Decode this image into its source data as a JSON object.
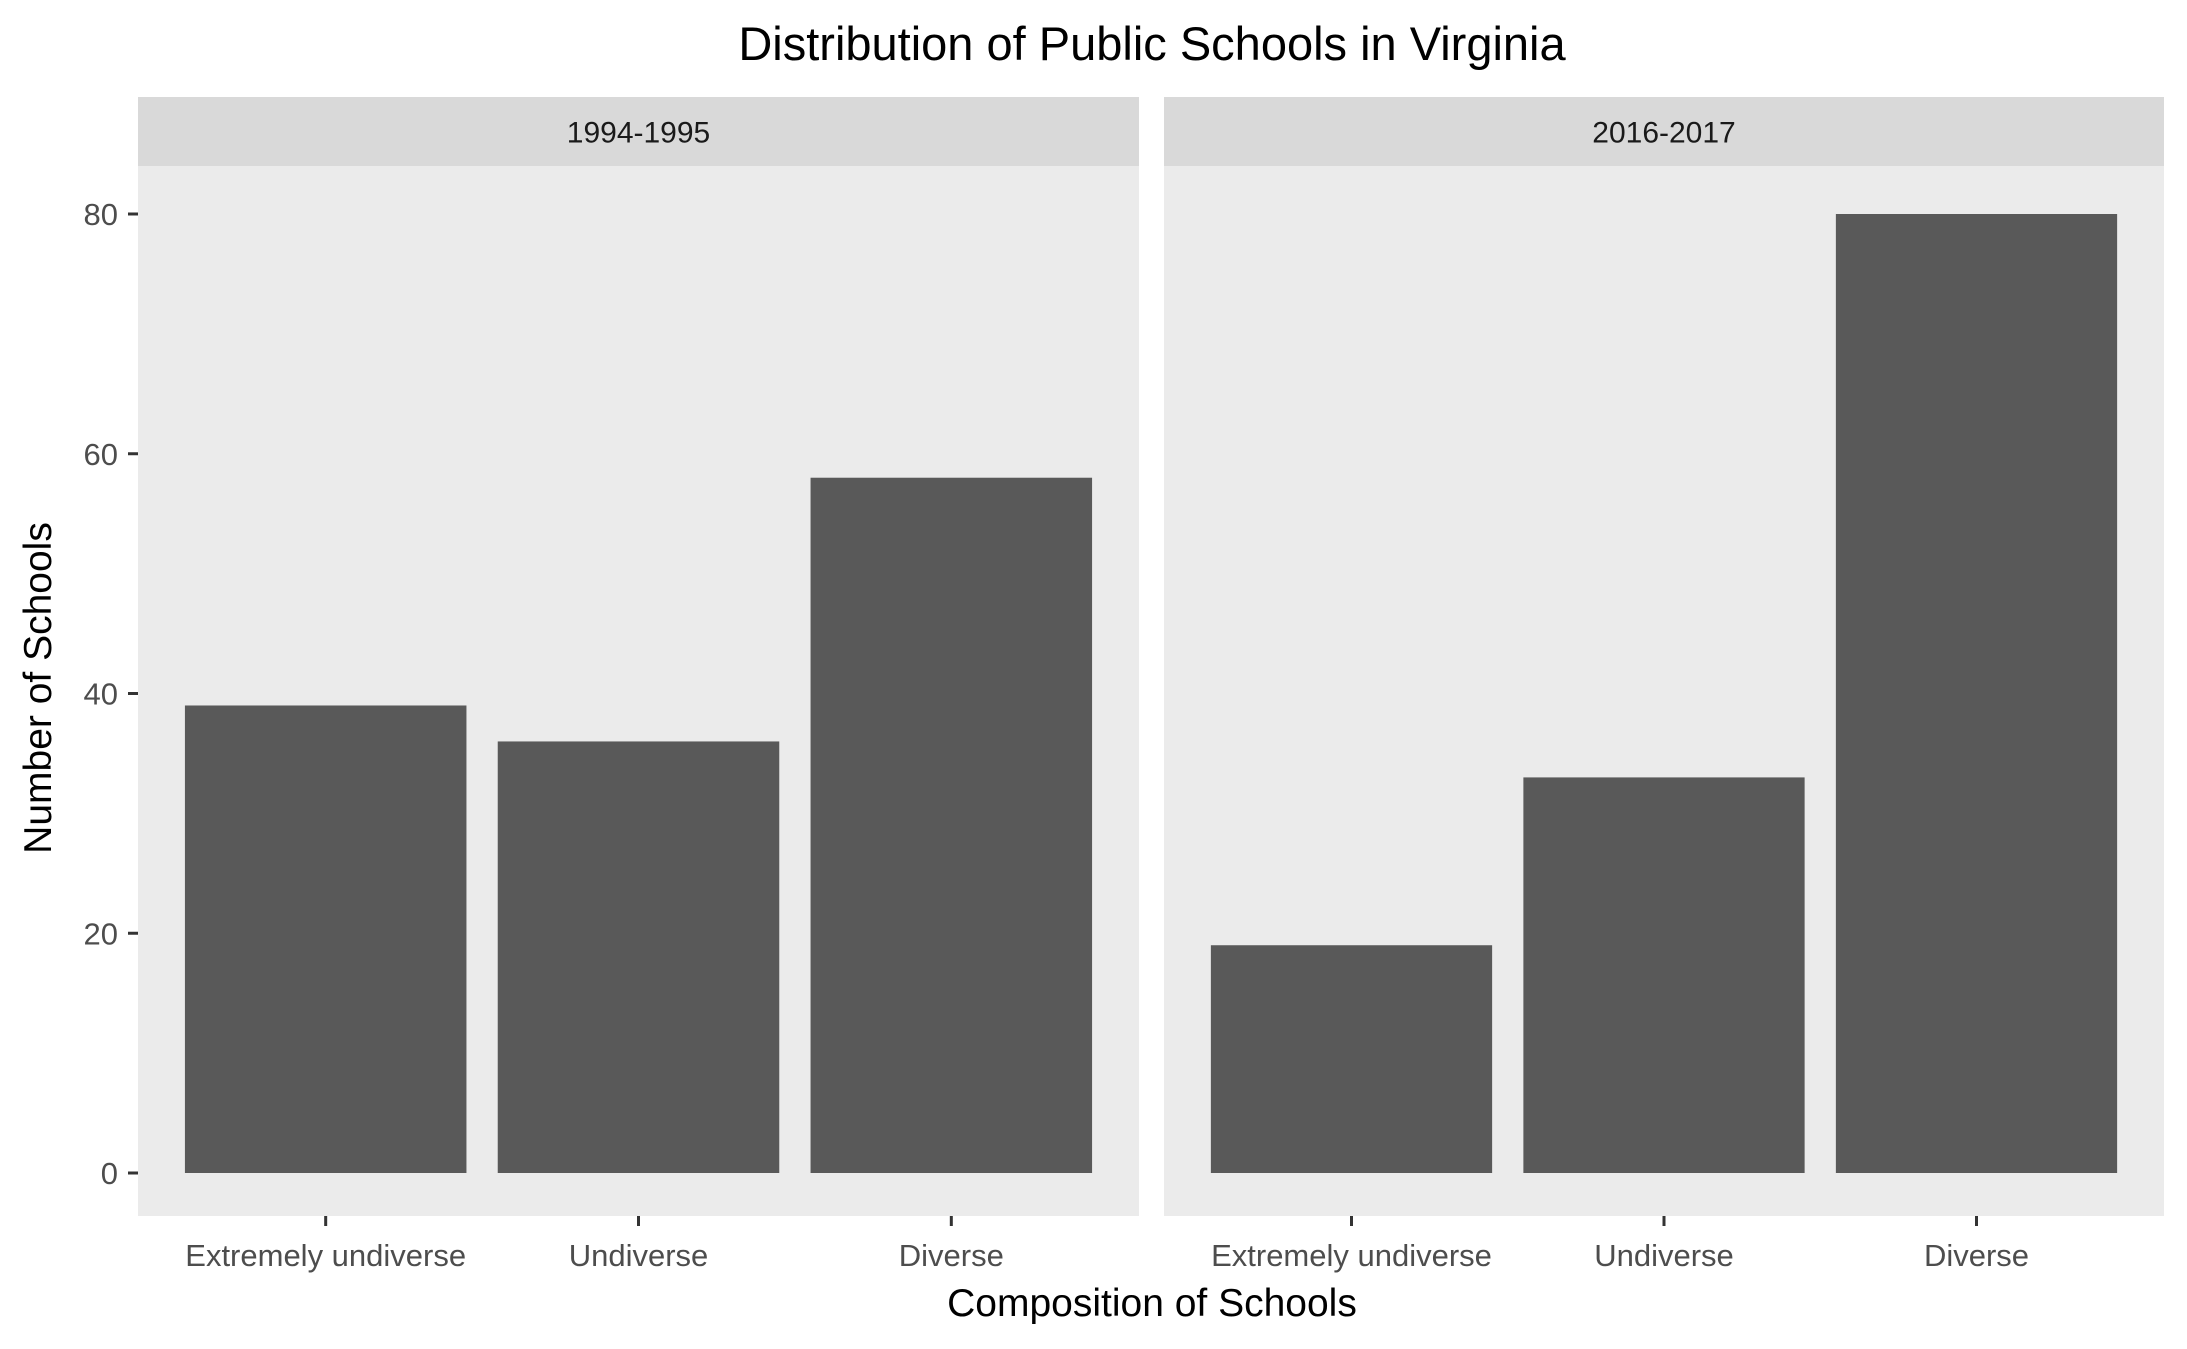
{
  "chart_data": {
    "type": "bar",
    "title": "Distribution of Public Schools in Virginia",
    "xlabel": "Composition of Schools",
    "ylabel": "Number of Schools",
    "categories": [
      "Extremely undiverse",
      "Undiverse",
      "Diverse"
    ],
    "yticks": [
      0,
      20,
      40,
      60,
      80
    ],
    "ylim": [
      0,
      84
    ],
    "grid": false,
    "bar_color": "#595959",
    "panel_color": "#ebebeb",
    "strip_color": "#d9d9d9",
    "facets": [
      {
        "label": "1994-1995",
        "values": [
          39,
          36,
          58
        ]
      },
      {
        "label": "2016-2017",
        "values": [
          19,
          33,
          80
        ]
      }
    ]
  }
}
